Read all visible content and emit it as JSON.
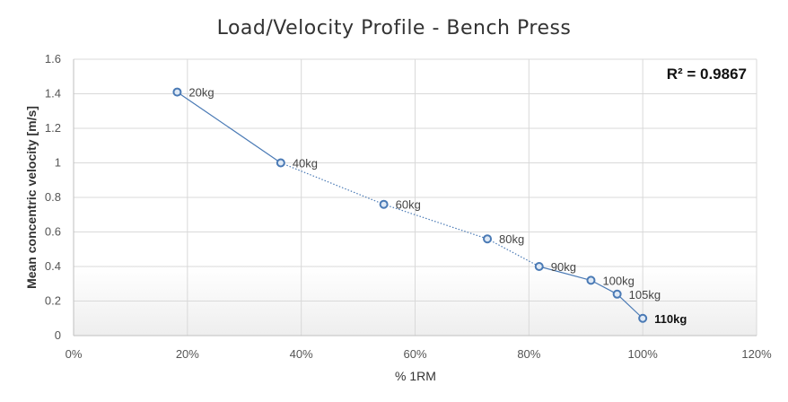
{
  "chart_data": {
    "type": "scatter",
    "title": "Load/Velocity Profile - Bench Press",
    "xlabel": "% 1RM",
    "ylabel": "Mean concentric velocity [m/s]",
    "xlim": [
      0,
      1.2
    ],
    "ylim": [
      0,
      1.6
    ],
    "x_ticks": [
      0,
      0.2,
      0.4,
      0.6,
      0.8,
      1.0,
      1.2
    ],
    "x_tick_labels": [
      "0%",
      "20%",
      "40%",
      "60%",
      "80%",
      "100%",
      "120%"
    ],
    "y_ticks": [
      0,
      0.2,
      0.4,
      0.6,
      0.8,
      1.0,
      1.2,
      1.4,
      1.6
    ],
    "y_tick_labels": [
      "0",
      "0.2",
      "0.4",
      "0.6",
      "0.8",
      "1",
      "1.2",
      "1.4",
      "1.6"
    ],
    "grid": true,
    "annotation": "R² = 0.9867",
    "series": [
      {
        "name": "Bench Press",
        "points": [
          {
            "x": 0.182,
            "y": 1.41,
            "label": "20kg",
            "bold": false
          },
          {
            "x": 0.364,
            "y": 1.0,
            "label": "40kg",
            "bold": false
          },
          {
            "x": 0.545,
            "y": 0.76,
            "label": "60kg",
            "bold": false
          },
          {
            "x": 0.727,
            "y": 0.56,
            "label": "80kg",
            "bold": false
          },
          {
            "x": 0.818,
            "y": 0.4,
            "label": "90kg",
            "bold": false
          },
          {
            "x": 0.909,
            "y": 0.32,
            "label": "100kg",
            "bold": false
          },
          {
            "x": 0.955,
            "y": 0.24,
            "label": "105kg",
            "bold": false
          },
          {
            "x": 1.0,
            "y": 0.1,
            "label": "110kg",
            "bold": true
          }
        ]
      }
    ],
    "colors": {
      "marker_stroke": "#4a7ab5",
      "marker_fill": "#dfe9f5",
      "line": "#4a7ab5",
      "grid": "#d9d9d9",
      "axis": "#bfbfbf"
    }
  }
}
